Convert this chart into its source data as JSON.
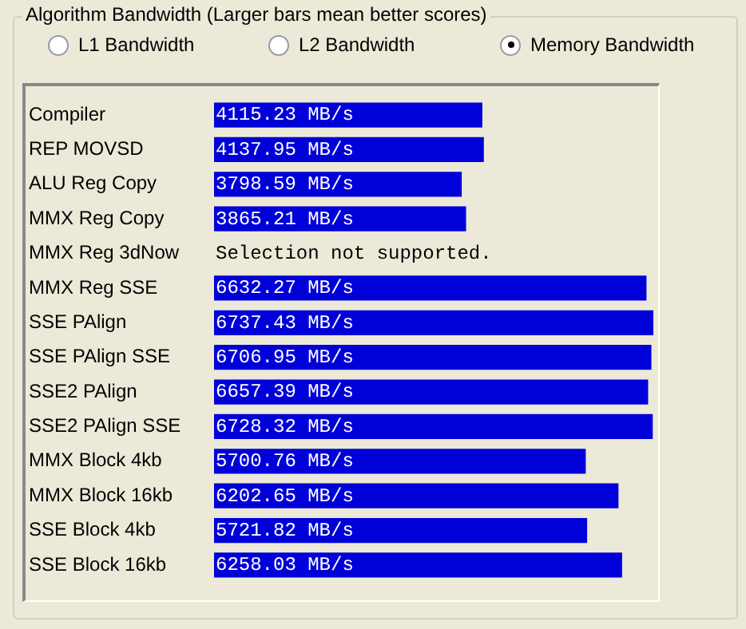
{
  "chart_data": {
    "type": "bar",
    "orientation": "horizontal",
    "title": "Algorithm Bandwidth (Larger bars mean better scores)",
    "annotations": [
      "L1 Bandwidth",
      "L2 Bandwidth",
      "Memory Bandwidth"
    ],
    "categories": [
      "Compiler",
      "REP MOVSD",
      "ALU Reg Copy",
      "MMX Reg Copy",
      "MMX Reg 3dNow",
      "MMX Reg SSE",
      "SSE PAlign",
      "SSE PAlign SSE",
      "SSE2 PAlign",
      "SSE2 PAlign SSE",
      "MMX Block 4kb",
      "MMX Block 16kb",
      "SSE Block 4kb",
      "SSE Block 16kb"
    ],
    "values": [
      4115.23,
      4137.95,
      3798.59,
      3865.21,
      null,
      6632.27,
      6737.43,
      6706.95,
      6657.39,
      6728.32,
      5700.76,
      6202.65,
      5721.82,
      6258.03
    ],
    "value_labels": [
      "4115.23 MB/s",
      "4137.95 MB/s",
      "3798.59 MB/s",
      "3865.21 MB/s",
      "Selection not supported.",
      "6632.27 MB/s",
      "6737.43 MB/s",
      "6706.95 MB/s",
      "6657.39 MB/s",
      "6728.32 MB/s",
      "5700.76 MB/s",
      "6202.65 MB/s",
      "5721.82 MB/s",
      "6258.03 MB/s"
    ],
    "color": "#0000d8",
    "grid": false,
    "legend": false
  }
}
